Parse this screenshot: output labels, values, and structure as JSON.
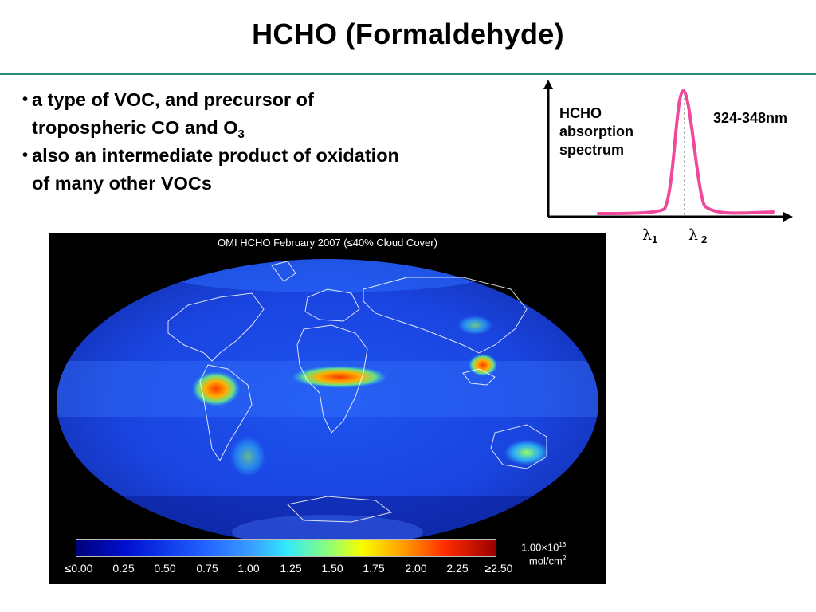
{
  "slide": {
    "title": "HCHO  (Formaldehyde)",
    "bullets": [
      {
        "text": "a type of VOC, and precursor of",
        "cont": "tropospheric CO and O",
        "sub": "3"
      },
      {
        "text": "also an intermediate product of oxidation",
        "cont": "of many other VOCs"
      }
    ]
  },
  "spectrum": {
    "label_lines": [
      "HCHO",
      "absorption",
      "spectrum"
    ],
    "range": "324-348nm",
    "lambda1": "λ",
    "lambda1_sub": "1",
    "lambda2": "λ",
    "lambda2_sub": "2",
    "line_color": "#f0489a"
  },
  "map": {
    "title": "OMI HCHO February 2007 (≤40% Cloud Cover)",
    "colorbar_ticks": [
      "≤0.00",
      "0.25",
      "0.50",
      "0.75",
      "1.00",
      "1.25",
      "1.50",
      "1.75",
      "2.00",
      "2.25",
      "≥2.50"
    ],
    "units_scale": "1.00×10",
    "units_exp": "16",
    "units": "mol/cm",
    "units_exp2": "2"
  }
}
